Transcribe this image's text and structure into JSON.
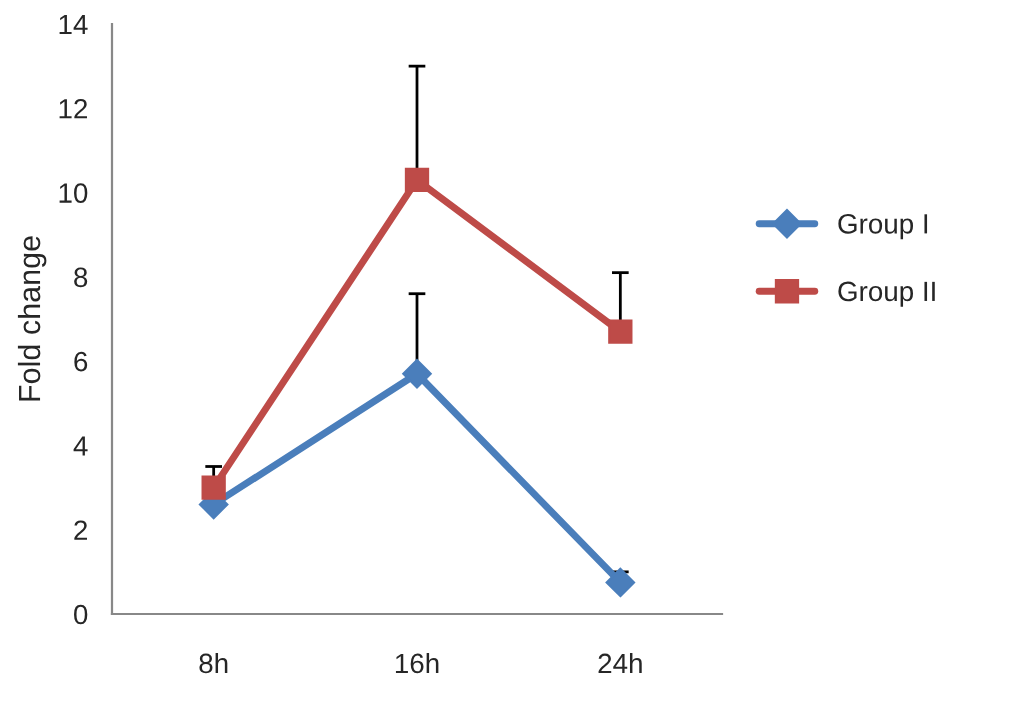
{
  "chart_data": {
    "type": "line",
    "ylabel": "Fold change",
    "categories": [
      "8h",
      "16h",
      "24h"
    ],
    "series": [
      {
        "name": "Group I",
        "color": "#4a7ebb",
        "marker": "diamond",
        "values": [
          2.6,
          5.7,
          0.75
        ],
        "errors": [
          null,
          [
            5.7,
            7.6
          ],
          [
            0.75,
            1.0
          ]
        ]
      },
      {
        "name": "Group II",
        "color": "#be4b48",
        "marker": "square",
        "values": [
          3.0,
          10.3,
          6.7
        ],
        "errors": [
          [
            3.0,
            3.5
          ],
          [
            10.3,
            13.0
          ],
          [
            6.7,
            8.1
          ]
        ]
      }
    ],
    "ylim": [
      0,
      14
    ],
    "yticks": [
      0,
      2,
      4,
      6,
      8,
      10,
      12,
      14
    ],
    "grid": false,
    "legend": "right"
  }
}
